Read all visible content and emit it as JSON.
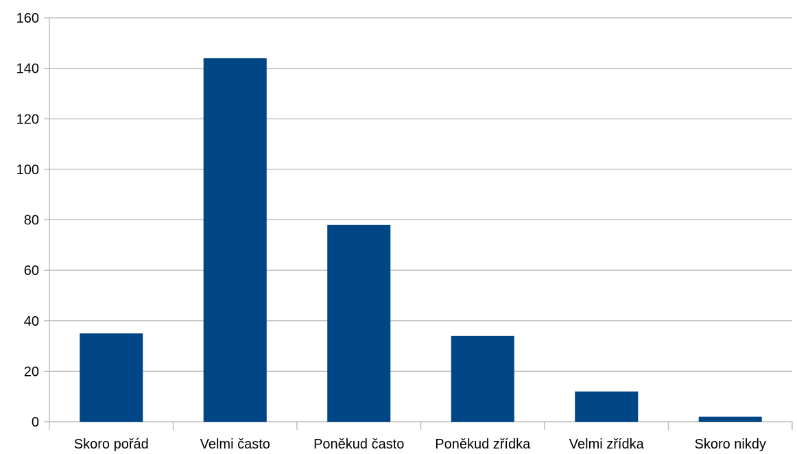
{
  "chart_data": {
    "type": "bar",
    "categories": [
      "Skoro pořád",
      "Velmi často",
      "Poněkud často",
      "Poněkud zřídka",
      "Velmi zřídka",
      "Skoro nikdy"
    ],
    "values": [
      35,
      144,
      78,
      34,
      12,
      2
    ],
    "ylim": [
      0,
      160
    ],
    "yticks": [
      0,
      20,
      40,
      60,
      80,
      100,
      120,
      140,
      160
    ],
    "grid": true,
    "legend": "none",
    "colors": {
      "bar": "#004586",
      "grid": "#b3b3b3",
      "axis": "#b3b3b3"
    }
  }
}
